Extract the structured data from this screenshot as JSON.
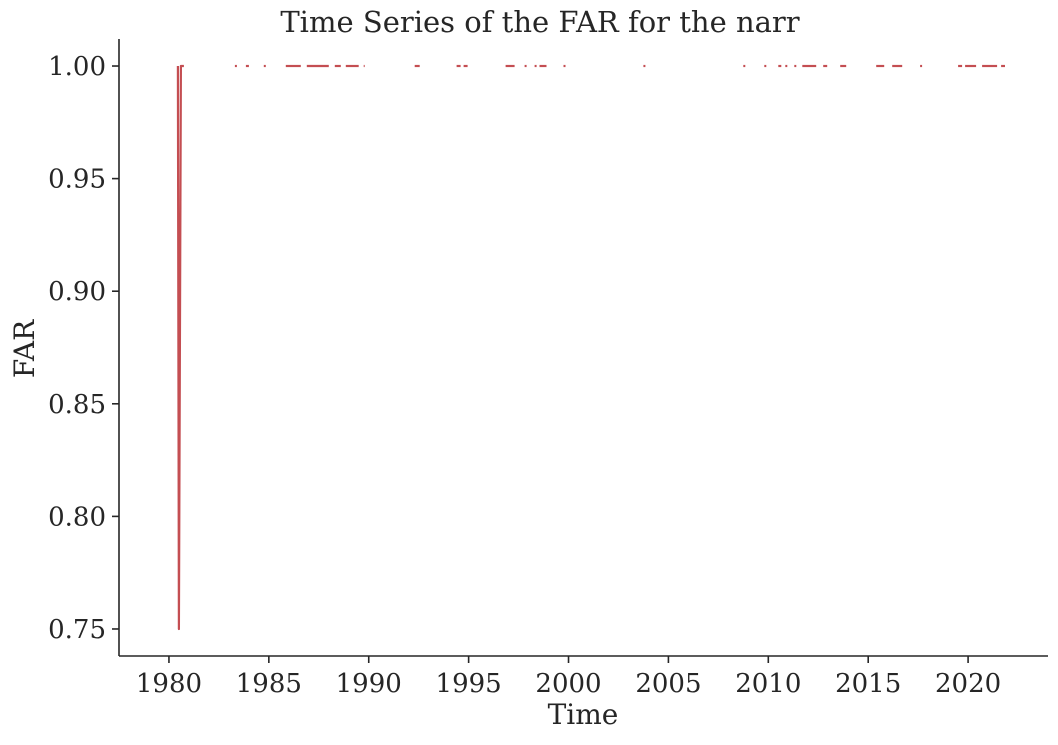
{
  "chart_data": {
    "type": "line",
    "title": "Time Series of the FAR for the narr",
    "xlabel": "Time",
    "ylabel": "FAR",
    "xlim": [
      1977.5,
      2024.0
    ],
    "ylim": [
      0.738,
      1.012
    ],
    "xticks": [
      1980,
      1985,
      1990,
      1995,
      2000,
      2005,
      2010,
      2015,
      2020
    ],
    "xtick_labels": [
      "1980",
      "1985",
      "1990",
      "1995",
      "2000",
      "2005",
      "2010",
      "2015",
      "2020"
    ],
    "yticks": [
      0.75,
      0.8,
      0.85,
      0.9,
      0.95,
      1.0
    ],
    "ytick_labels": [
      "0.75",
      "0.80",
      "0.85",
      "0.90",
      "0.95",
      "1.00"
    ],
    "grid": false,
    "legend": "none",
    "color": "#c44e52",
    "series": [
      {
        "segments": [
          [
            [
              1980.45,
              1.0
            ],
            [
              1980.5,
              0.75
            ],
            [
              1980.6,
              1.0
            ],
            [
              1980.75,
              1.0
            ]
          ],
          [
            [
              1983.3,
              1.0
            ],
            [
              1983.4,
              1.0
            ]
          ],
          [
            [
              1983.85,
              1.0
            ],
            [
              1984.0,
              1.0
            ]
          ],
          [
            [
              1984.75,
              1.0
            ],
            [
              1984.85,
              1.0
            ]
          ],
          [
            [
              1985.85,
              1.0
            ],
            [
              1986.6,
              1.0
            ]
          ],
          [
            [
              1986.9,
              1.0
            ],
            [
              1988.0,
              1.0
            ]
          ],
          [
            [
              1988.3,
              1.0
            ],
            [
              1988.6,
              1.0
            ]
          ],
          [
            [
              1988.85,
              1.0
            ],
            [
              1989.5,
              1.0
            ]
          ],
          [
            [
              1989.75,
              1.0
            ],
            [
              1989.8,
              1.0
            ]
          ],
          [
            [
              1992.3,
              1.0
            ],
            [
              1992.55,
              1.0
            ]
          ],
          [
            [
              1994.4,
              1.0
            ],
            [
              1994.6,
              1.0
            ]
          ],
          [
            [
              1994.75,
              1.0
            ],
            [
              1994.95,
              1.0
            ]
          ],
          [
            [
              1996.85,
              1.0
            ],
            [
              1997.3,
              1.0
            ]
          ],
          [
            [
              1997.8,
              1.0
            ],
            [
              1997.9,
              1.0
            ]
          ],
          [
            [
              1998.3,
              1.0
            ],
            [
              1998.4,
              1.0
            ]
          ],
          [
            [
              1998.55,
              1.0
            ],
            [
              1998.9,
              1.0
            ]
          ],
          [
            [
              1999.75,
              1.0
            ],
            [
              1999.85,
              1.0
            ]
          ],
          [
            [
              2003.75,
              1.0
            ],
            [
              2003.85,
              1.0
            ]
          ],
          [
            [
              2008.75,
              1.0
            ],
            [
              2008.85,
              1.0
            ]
          ],
          [
            [
              2009.8,
              1.0
            ],
            [
              2009.9,
              1.0
            ]
          ],
          [
            [
              2010.5,
              1.0
            ],
            [
              2010.65,
              1.0
            ]
          ],
          [
            [
              2010.85,
              1.0
            ],
            [
              2010.95,
              1.0
            ]
          ],
          [
            [
              2011.3,
              1.0
            ],
            [
              2011.4,
              1.0
            ]
          ],
          [
            [
              2011.7,
              1.0
            ],
            [
              2012.4,
              1.0
            ]
          ],
          [
            [
              2012.75,
              1.0
            ],
            [
              2012.95,
              1.0
            ]
          ],
          [
            [
              2013.6,
              1.0
            ],
            [
              2013.9,
              1.0
            ]
          ],
          [
            [
              2015.4,
              1.0
            ],
            [
              2015.8,
              1.0
            ]
          ],
          [
            [
              2016.2,
              1.0
            ],
            [
              2016.7,
              1.0
            ]
          ],
          [
            [
              2017.6,
              1.0
            ],
            [
              2017.7,
              1.0
            ]
          ],
          [
            [
              2019.5,
              1.0
            ],
            [
              2019.7,
              1.0
            ]
          ],
          [
            [
              2019.85,
              1.0
            ],
            [
              2020.4,
              1.0
            ]
          ],
          [
            [
              2020.7,
              1.0
            ],
            [
              2021.45,
              1.0
            ]
          ],
          [
            [
              2021.65,
              1.0
            ],
            [
              2021.85,
              1.0
            ]
          ]
        ]
      }
    ]
  }
}
